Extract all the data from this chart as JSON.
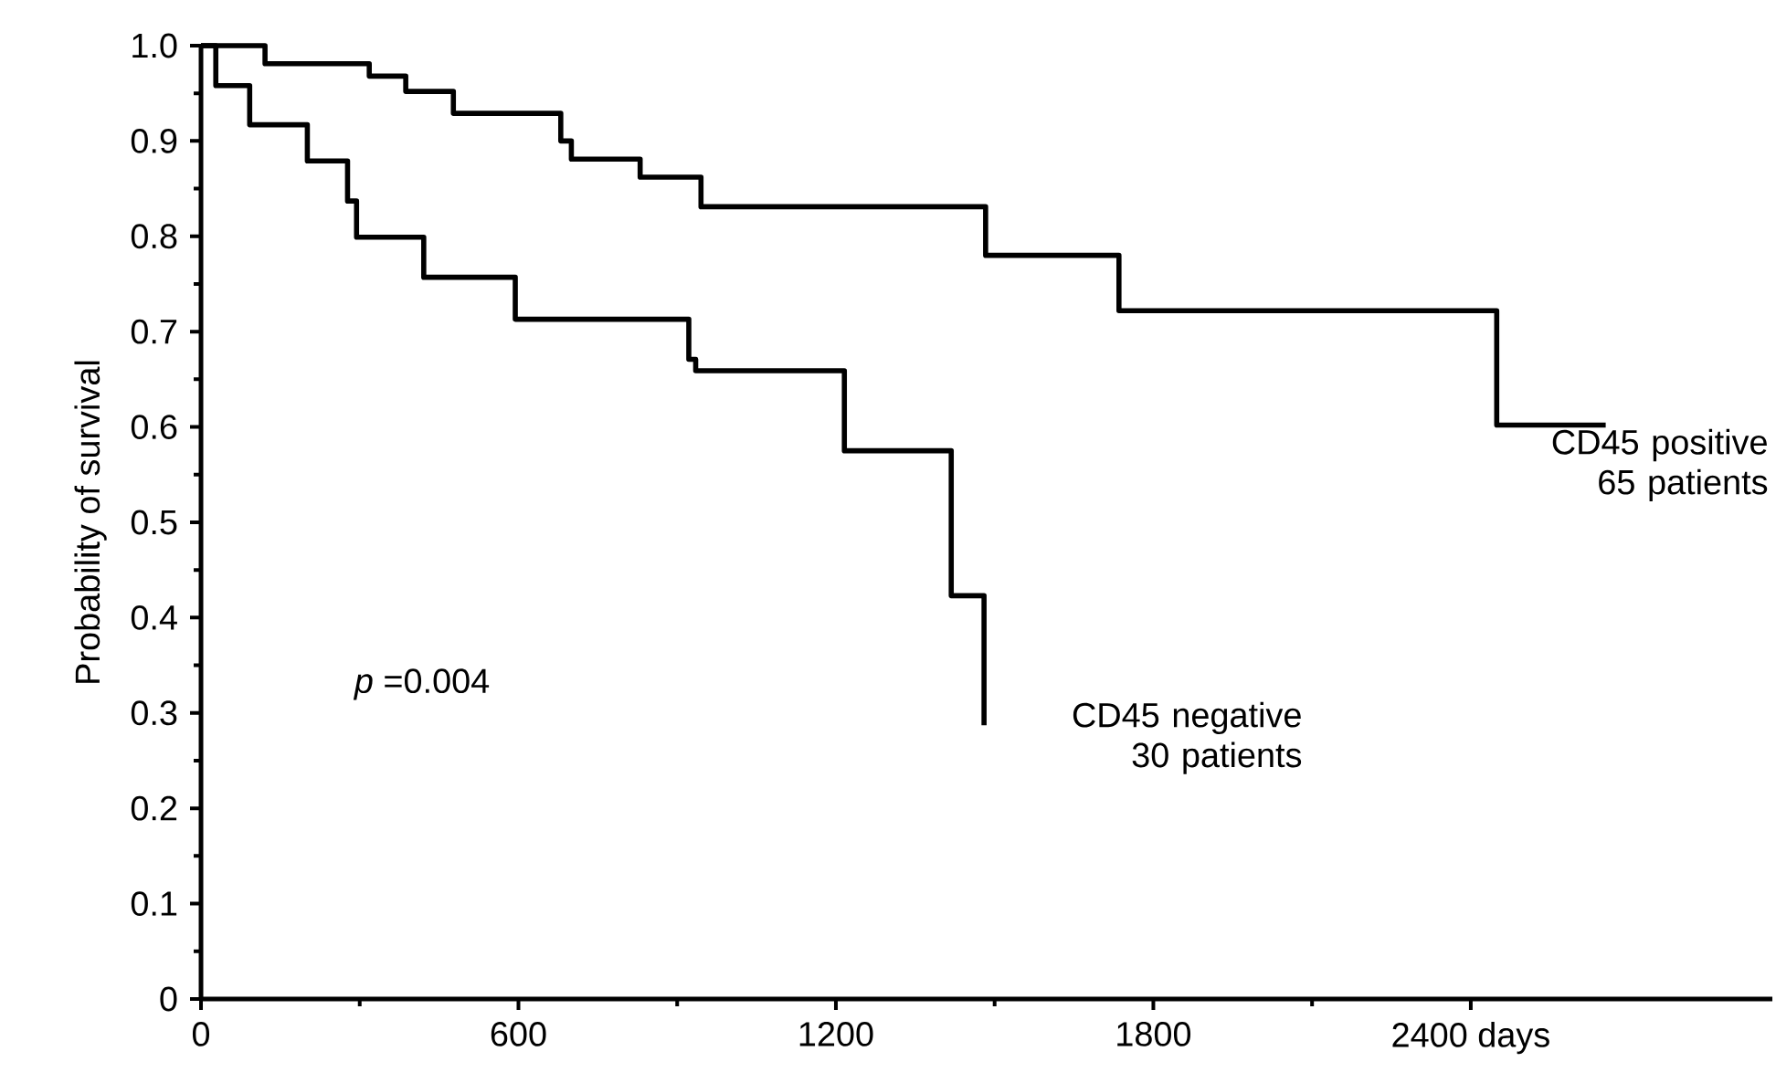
{
  "chart_data": {
    "type": "step",
    "ylabel": "Probability of survival",
    "xlim": [
      0,
      2970
    ],
    "ylim": [
      0,
      1.0
    ],
    "xticks": [
      0,
      600,
      1200,
      1800,
      {
        "value": 2400,
        "label": "2400 days"
      }
    ],
    "yticks": [
      0,
      0.1,
      0.2,
      0.3,
      0.4,
      0.5,
      0.6,
      0.7,
      0.8,
      0.9,
      {
        "value": 1.0,
        "label": "1.0"
      }
    ],
    "annotations": [
      "*p* =0.004"
    ],
    "series": [
      {
        "name": "CD45 positive 65 patients",
        "color": "#000000",
        "x": [
          0,
          121,
          318,
          387,
          477,
          680,
          700,
          830,
          945,
          1483,
          1735,
          2449,
          2655
        ],
        "values": [
          1.0,
          0.981,
          0.968,
          0.952,
          0.929,
          0.9,
          0.881,
          0.862,
          0.831,
          0.78,
          0.722,
          0.602,
          0.602
        ]
      },
      {
        "name": "CD45 negative 30 patients",
        "color": "#000000",
        "x": [
          0,
          28,
          92,
          201,
          277,
          294,
          421,
          594,
          922,
          935,
          1216,
          1418,
          1480
        ],
        "values": [
          1.0,
          0.958,
          0.917,
          0.879,
          0.837,
          0.799,
          0.757,
          0.713,
          0.671,
          0.659,
          0.575,
          0.423,
          0.287
        ]
      }
    ]
  }
}
